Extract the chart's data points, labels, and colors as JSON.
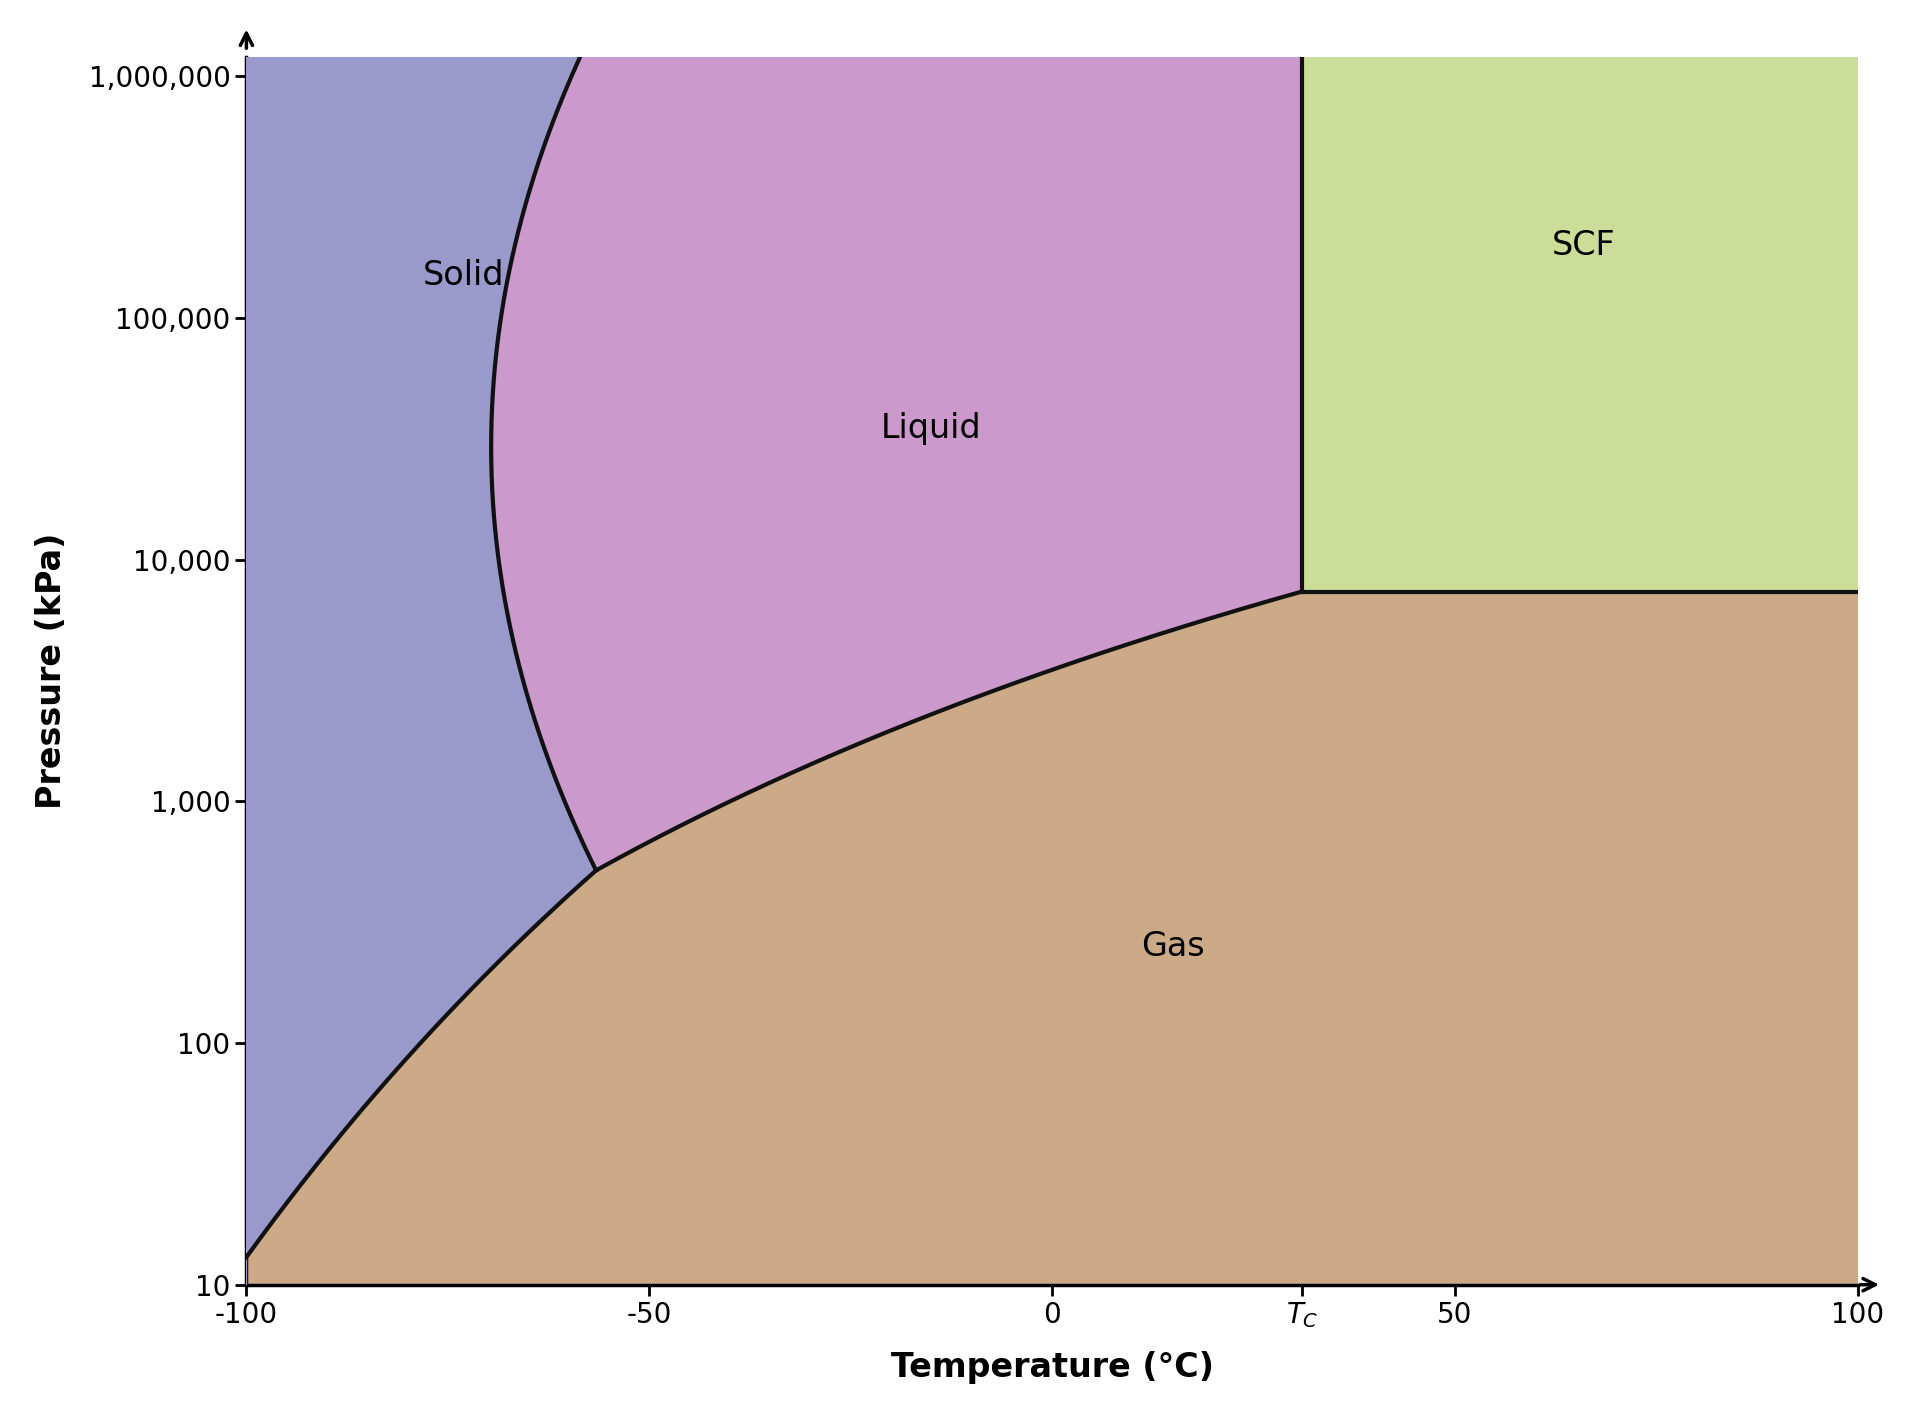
{
  "xlabel": "Temperature (°C)",
  "ylabel": "Pressure (kPa)",
  "xlim": [
    -100,
    100
  ],
  "yticks": [
    10,
    100,
    1000,
    10000,
    100000,
    1000000
  ],
  "ytick_labels": [
    "10",
    "100",
    "1,000",
    "10,000",
    "100,000",
    "1,000,000"
  ],
  "xticks": [
    -100,
    -50,
    0,
    31,
    50,
    100
  ],
  "critical_temp": 31.0,
  "critical_pressure": 7380.0,
  "triple_temp": -56.6,
  "triple_pressure": 518.0,
  "background_color": "#ffffff",
  "solid_color": "#9999cc",
  "liquid_color": "#cc99cc",
  "gas_color": "#ccaa88",
  "scf_color": "#ccdd99",
  "line_color": "#111111",
  "line_width": 3.0,
  "label_fontsize": 24,
  "tick_fontsize": 20,
  "axis_label_fontsize": 24,
  "Pmax": 1200000,
  "Pmin": 10
}
